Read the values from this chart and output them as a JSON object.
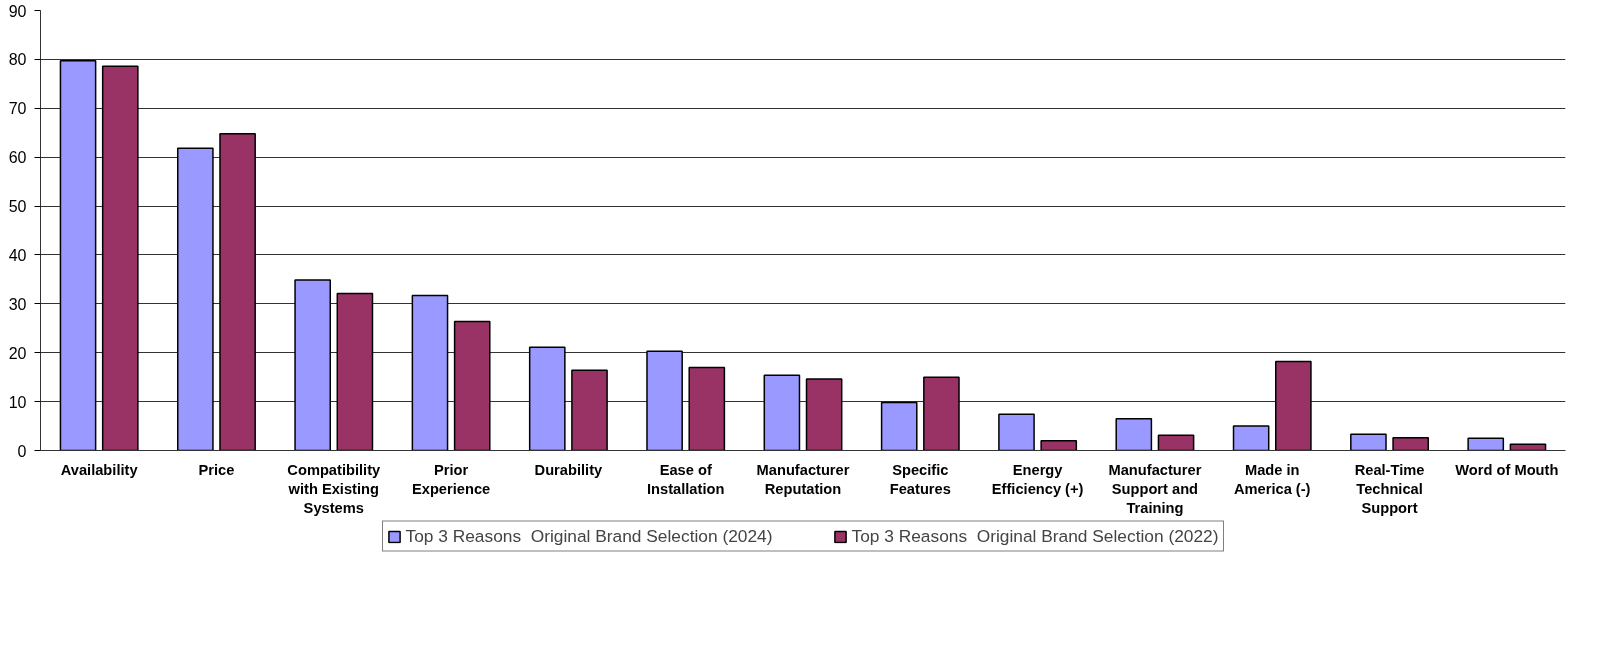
{
  "chart_data": {
    "type": "bar",
    "categories": [
      "Availability",
      "Price",
      "Compatibility with Existing Systems",
      "Prior Experience",
      "Durability",
      "Ease of Installation",
      "Manufacturer Reputation",
      "Specific Features",
      "Energy Efficiency (+)",
      "Manufacturer Support and Training",
      "Made in America (-)",
      "Real-Time Technical Support",
      "Word of Mouth"
    ],
    "series": [
      {
        "name": "Top 3 Reasons  Original Brand Selection (2024)",
        "color": "#9999ff",
        "values": [
          79.7,
          61.8,
          34.9,
          31.7,
          21.1,
          20.3,
          15.4,
          9.8,
          7.4,
          6.5,
          5.0,
          3.3,
          2.5
        ]
      },
      {
        "name": "Top 3 Reasons  Original Brand Selection (2022)",
        "color": "#993366",
        "values": [
          78.6,
          64.8,
          32.1,
          26.4,
          16.4,
          17.0,
          14.6,
          15.0,
          2.0,
          3.1,
          18.2,
          2.6,
          1.3
        ]
      }
    ],
    "ylim": [
      0,
      90
    ],
    "yticks": [
      0,
      10,
      20,
      30,
      40,
      50,
      60,
      70,
      80,
      90
    ],
    "grid": "y",
    "legend": "bottom"
  }
}
